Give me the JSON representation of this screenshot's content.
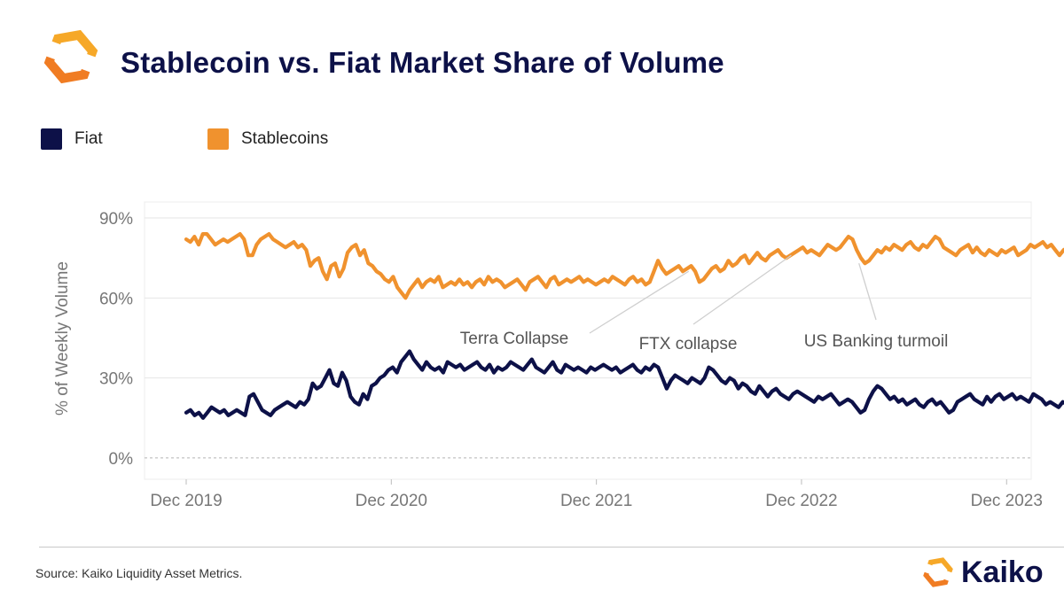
{
  "header": {
    "title": "Stablecoin vs. Fiat Market Share of Volume",
    "logo_icon": "kaiko-logo-icon"
  },
  "colors": {
    "fiat": "#0d1148",
    "stablecoins": "#f0922e",
    "grid": "#e6e6e6",
    "axis_text": "#777777",
    "annotation_text": "#555555",
    "title": "#0d1148"
  },
  "legend": {
    "items": [
      {
        "label": "Fiat",
        "color": "#0d1148"
      },
      {
        "label": "Stablecoins",
        "color": "#f0922e"
      }
    ]
  },
  "chart_data": {
    "type": "line",
    "title": "Stablecoin vs. Fiat Market Share of Volume",
    "xlabel": "",
    "ylabel": "% of Weekly Volume",
    "ylim": [
      -8,
      96
    ],
    "y_ticks": [
      {
        "value": 0,
        "label": "0%"
      },
      {
        "value": 30,
        "label": "30%"
      },
      {
        "value": 60,
        "label": "60%"
      },
      {
        "value": 90,
        "label": "90%"
      }
    ],
    "x_start": 2019.92,
    "x_end": 2024.55,
    "x_ticks": [
      {
        "value": 2019.92,
        "label": "Dec 2019"
      },
      {
        "value": 2020.92,
        "label": "Dec 2020"
      },
      {
        "value": 2021.92,
        "label": "Dec 2021"
      },
      {
        "value": 2022.92,
        "label": "Dec 2022"
      },
      {
        "value": 2023.92,
        "label": "Dec 2023"
      }
    ],
    "series": [
      {
        "name": "Stablecoins",
        "color": "#f0922e",
        "start": 2019.92,
        "end": 2024.42,
        "values": [
          82,
          81,
          83,
          80,
          84,
          84,
          82,
          80,
          81,
          82,
          81,
          82,
          83,
          84,
          82,
          76,
          76,
          80,
          82,
          83,
          84,
          82,
          81,
          80,
          79,
          80,
          81,
          79,
          80,
          78,
          72,
          74,
          75,
          70,
          67,
          72,
          73,
          68,
          71,
          77,
          79,
          80,
          76,
          78,
          73,
          72,
          70,
          69,
          67,
          66,
          68,
          64,
          62,
          60,
          63,
          65,
          67,
          64,
          66,
          67,
          66,
          68,
          64,
          65,
          66,
          65,
          67,
          65,
          66,
          64,
          66,
          67,
          65,
          68,
          66,
          67,
          66,
          64,
          65,
          66,
          67,
          65,
          63,
          66,
          67,
          68,
          66,
          64,
          67,
          68,
          65,
          66,
          67,
          66,
          67,
          68,
          66,
          67,
          66,
          65,
          66,
          67,
          66,
          68,
          67,
          66,
          65,
          67,
          68,
          66,
          67,
          65,
          66,
          70,
          74,
          71,
          69,
          70,
          71,
          72,
          70,
          71,
          72,
          70,
          66,
          67,
          69,
          71,
          72,
          70,
          71,
          74,
          72,
          73,
          75,
          76,
          73,
          75,
          77,
          75,
          74,
          76,
          77,
          78,
          76,
          75,
          76,
          77,
          78,
          79,
          77,
          78,
          77,
          76,
          78,
          80,
          79,
          78,
          79,
          81,
          83,
          82,
          78,
          75,
          73,
          74,
          76,
          78,
          77,
          79,
          78,
          80,
          79,
          78,
          80,
          81,
          79,
          78,
          80,
          79,
          81,
          83,
          82,
          79,
          78,
          77,
          76,
          78,
          79,
          80,
          77,
          79,
          77,
          76,
          78,
          77,
          76,
          78,
          77,
          78,
          79,
          76,
          77,
          78,
          80,
          79,
          80,
          81,
          79,
          80,
          78,
          76,
          78,
          79,
          80,
          81,
          79,
          80,
          78,
          79,
          80,
          81,
          82,
          81
        ]
      },
      {
        "name": "Fiat",
        "color": "#0d1148",
        "start": 2019.92,
        "end": 2024.42,
        "values": [
          17,
          18,
          16,
          17,
          15,
          17,
          19,
          18,
          17,
          18,
          16,
          17,
          18,
          17,
          16,
          23,
          24,
          21,
          18,
          17,
          16,
          18,
          19,
          20,
          21,
          20,
          19,
          21,
          20,
          22,
          28,
          26,
          27,
          30,
          33,
          28,
          27,
          32,
          29,
          23,
          21,
          20,
          24,
          22,
          27,
          28,
          30,
          31,
          33,
          34,
          32,
          36,
          38,
          40,
          37,
          35,
          33,
          36,
          34,
          33,
          34,
          32,
          36,
          35,
          34,
          35,
          33,
          34,
          35,
          36,
          34,
          33,
          35,
          32,
          34,
          33,
          34,
          36,
          35,
          34,
          33,
          35,
          37,
          34,
          33,
          32,
          34,
          36,
          33,
          32,
          35,
          34,
          33,
          34,
          33,
          32,
          34,
          33,
          34,
          35,
          34,
          33,
          34,
          32,
          33,
          34,
          35,
          33,
          32,
          34,
          33,
          35,
          34,
          30,
          26,
          29,
          31,
          30,
          29,
          28,
          30,
          29,
          28,
          30,
          34,
          33,
          31,
          29,
          28,
          30,
          29,
          26,
          28,
          27,
          25,
          24,
          27,
          25,
          23,
          25,
          26,
          24,
          23,
          22,
          24,
          25,
          24,
          23,
          22,
          21,
          23,
          22,
          23,
          24,
          22,
          20,
          21,
          22,
          21,
          19,
          17,
          18,
          22,
          25,
          27,
          26,
          24,
          22,
          23,
          21,
          22,
          20,
          21,
          22,
          20,
          19,
          21,
          22,
          20,
          21,
          19,
          17,
          18,
          21,
          22,
          23,
          24,
          22,
          21,
          20,
          23,
          21,
          23,
          24,
          22,
          23,
          24,
          22,
          23,
          22,
          21,
          24,
          23,
          22,
          20,
          21,
          20,
          19,
          21,
          20,
          22,
          24,
          22,
          21,
          20,
          19,
          21,
          20,
          18,
          19
        ]
      }
    ],
    "annotations": [
      {
        "text": "Terra Collapse",
        "x": 2022.37,
        "y": 70
      },
      {
        "text": "FTX collapse",
        "x": 2022.87,
        "y": 76
      },
      {
        "text": "US Banking turmoil",
        "x": 2023.2,
        "y": 73
      }
    ],
    "zero_line": true
  },
  "footer": {
    "source": "Source: Kaiko Liquidity Asset Metrics.",
    "brand": "Kaiko",
    "brand_icon": "kaiko-brand-icon"
  }
}
